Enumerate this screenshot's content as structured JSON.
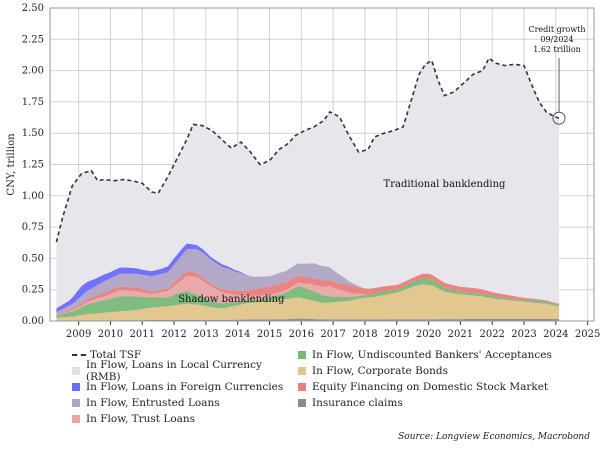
{
  "chart_data": {
    "type": "area",
    "ylabel": "CNY, trillion",
    "ylim": [
      0,
      2.5
    ],
    "y_ticks": [
      "0.00",
      "0.25",
      "0.50",
      "0.75",
      "1.00",
      "1.25",
      "1.50",
      "1.75",
      "2.00",
      "2.25",
      "2.50"
    ],
    "xlim": [
      2008.6,
      2025.7
    ],
    "x_ticks": [
      "2009",
      "2010",
      "2011",
      "2012",
      "2013",
      "2014",
      "2015",
      "2016",
      "2017",
      "2018",
      "2019",
      "2020",
      "2021",
      "2022",
      "2023",
      "2024",
      "2025"
    ],
    "grid": true,
    "legend_position": "bottom",
    "series": [
      {
        "name": "Total TSF",
        "kind": "line",
        "color": "#333333",
        "x": [
          2008.8,
          2009.0,
          2009.3,
          2009.6,
          2009.9,
          2010.1,
          2010.3,
          2010.6,
          2010.9,
          2011.2,
          2011.5,
          2011.8,
          2012.0,
          2012.3,
          2012.6,
          2012.9,
          2013.1,
          2013.4,
          2013.7,
          2014.0,
          2014.3,
          2014.6,
          2014.9,
          2015.2,
          2015.5,
          2015.8,
          2016.1,
          2016.3,
          2016.6,
          2016.9,
          2017.2,
          2017.4,
          2017.7,
          2018.0,
          2018.3,
          2018.6,
          2018.8,
          2019.1,
          2019.4,
          2019.7,
          2020.0,
          2020.2,
          2020.4,
          2020.6,
          2020.8,
          2021.0,
          2021.3,
          2021.6,
          2021.9,
          2022.2,
          2022.4,
          2022.6,
          2022.9,
          2023.2,
          2023.5,
          2023.8,
          2024.0,
          2024.2,
          2024.4,
          2024.6
        ],
        "y": [
          0.63,
          0.83,
          1.08,
          1.18,
          1.2,
          1.12,
          1.13,
          1.12,
          1.13,
          1.12,
          1.1,
          1.03,
          1.02,
          1.15,
          1.3,
          1.45,
          1.57,
          1.56,
          1.52,
          1.45,
          1.38,
          1.43,
          1.35,
          1.25,
          1.28,
          1.37,
          1.42,
          1.48,
          1.52,
          1.55,
          1.6,
          1.67,
          1.63,
          1.48,
          1.35,
          1.37,
          1.47,
          1.5,
          1.52,
          1.55,
          1.8,
          1.97,
          2.05,
          2.08,
          1.92,
          1.8,
          1.83,
          1.9,
          1.97,
          2.0,
          2.1,
          2.06,
          2.04,
          2.05,
          2.04,
          1.85,
          1.74,
          1.67,
          1.64,
          1.62
        ]
      },
      {
        "name": "In Flow, Loans in Local Currency (RMB)",
        "kind": "area",
        "color": "#e6e6ec",
        "x": [
          2008.8,
          2009.0,
          2009.3,
          2009.6,
          2009.9,
          2010.1,
          2010.3,
          2010.6,
          2010.9,
          2011.2,
          2011.5,
          2011.8,
          2012.0,
          2012.3,
          2012.6,
          2012.9,
          2013.1,
          2013.4,
          2013.7,
          2014.0,
          2014.3,
          2014.6,
          2014.9,
          2015.2,
          2015.5,
          2015.8,
          2016.1,
          2016.3,
          2016.6,
          2016.9,
          2017.2,
          2017.4,
          2017.7,
          2018.0,
          2018.3,
          2018.6,
          2018.8,
          2019.1,
          2019.4,
          2019.7,
          2020.0,
          2020.2,
          2020.4,
          2020.6,
          2020.8,
          2021.0,
          2021.3,
          2021.6,
          2021.9,
          2022.2,
          2022.4,
          2022.6,
          2022.9,
          2023.2,
          2023.5,
          2023.8,
          2024.0,
          2024.2,
          2024.4,
          2024.6
        ],
        "y": [
          0.63,
          0.83,
          1.08,
          1.18,
          1.2,
          1.12,
          1.13,
          1.12,
          1.13,
          1.12,
          1.1,
          1.03,
          1.02,
          1.15,
          1.3,
          1.45,
          1.57,
          1.56,
          1.52,
          1.45,
          1.38,
          1.43,
          1.35,
          1.25,
          1.28,
          1.37,
          1.42,
          1.48,
          1.52,
          1.55,
          1.6,
          1.67,
          1.63,
          1.48,
          1.35,
          1.37,
          1.47,
          1.5,
          1.52,
          1.55,
          1.8,
          1.97,
          2.05,
          2.08,
          1.92,
          1.8,
          1.83,
          1.9,
          1.97,
          2.0,
          2.1,
          2.06,
          2.04,
          2.05,
          2.04,
          1.85,
          1.74,
          1.67,
          1.64,
          1.62
        ]
      },
      {
        "name": "In Flow, Loans in Foreign Currencies",
        "kind": "area",
        "color": "#6b6bff",
        "x": [
          2008.8,
          2009.2,
          2009.6,
          2010.0,
          2010.5,
          2011.0,
          2011.5,
          2012.0,
          2012.5,
          2012.8,
          2013.0,
          2013.3,
          2013.6,
          2014.0,
          2014.5,
          2015.0
        ],
        "y": [
          0.03,
          0.04,
          0.08,
          0.06,
          0.05,
          0.05,
          0.04,
          0.04,
          0.05,
          0.05,
          0.04,
          0.03,
          0.02,
          0.02,
          0.01,
          0.0
        ]
      },
      {
        "name": "In Flow, Entrusted Loans",
        "kind": "area",
        "color": "#b0a4c4",
        "x": [
          2008.8,
          2009.3,
          2009.8,
          2010.3,
          2010.8,
          2011.3,
          2011.8,
          2012.3,
          2012.7,
          2013.0,
          2013.4,
          2013.8,
          2014.2,
          2014.6,
          2015.0,
          2015.5,
          2016.0,
          2016.5,
          2016.9,
          2017.3,
          2017.7,
          2018.0,
          2018.4
        ],
        "y": [
          0.02,
          0.04,
          0.07,
          0.09,
          0.1,
          0.11,
          0.12,
          0.13,
          0.16,
          0.18,
          0.2,
          0.19,
          0.17,
          0.14,
          0.1,
          0.08,
          0.09,
          0.1,
          0.12,
          0.11,
          0.07,
          0.03,
          0.0
        ]
      },
      {
        "name": "Equity Financing on Domestic Stock Market",
        "kind": "area",
        "color": "#e8807a",
        "x": [
          2008.8,
          2009.3,
          2009.8,
          2010.3,
          2010.8,
          2011.3,
          2011.8,
          2012.3,
          2012.6,
          2012.9,
          2013.3,
          2013.8,
          2014.3,
          2014.8,
          2015.2,
          2015.7,
          2016.2,
          2016.7,
          2017.2,
          2017.6,
          2018.0,
          2018.5,
          2019.0,
          2019.5,
          2020.0,
          2020.5,
          2021.0,
          2021.5,
          2022.0,
          2022.5,
          2023.0,
          2023.5,
          2024.0,
          2024.6
        ],
        "y": [
          0.005,
          0.01,
          0.02,
          0.03,
          0.03,
          0.03,
          0.02,
          0.02,
          0.03,
          0.04,
          0.03,
          0.02,
          0.03,
          0.04,
          0.06,
          0.07,
          0.06,
          0.05,
          0.05,
          0.05,
          0.06,
          0.05,
          0.04,
          0.04,
          0.03,
          0.04,
          0.04,
          0.04,
          0.04,
          0.03,
          0.03,
          0.02,
          0.01,
          0.01
        ]
      },
      {
        "name": "In Flow, Trust Loans",
        "kind": "area",
        "color": "#e8a6a6",
        "x": [
          2008.8,
          2009.3,
          2009.8,
          2010.3,
          2010.8,
          2011.3,
          2011.8,
          2012.3,
          2012.6,
          2012.9,
          2013.2,
          2013.6,
          2014.0,
          2014.4,
          2014.8,
          2015.2,
          2015.6,
          2016.0,
          2016.5,
          2017.0,
          2017.4,
          2017.8,
          2018.2,
          2018.6,
          2019.0
        ],
        "y": [
          0.0,
          0.01,
          0.02,
          0.03,
          0.05,
          0.04,
          0.03,
          0.05,
          0.08,
          0.12,
          0.14,
          0.12,
          0.09,
          0.06,
          0.04,
          0.03,
          0.02,
          0.02,
          0.03,
          0.06,
          0.08,
          0.05,
          0.02,
          0.0,
          0.0
        ]
      },
      {
        "name": "In Flow, Undiscounted Bankers' Acceptances",
        "kind": "area",
        "color": "#7ab87a",
        "x": [
          2008.8,
          2009.3,
          2009.8,
          2010.3,
          2010.8,
          2011.3,
          2011.8,
          2012.3,
          2012.6,
          2012.9,
          2013.2,
          2013.6,
          2014.0,
          2014.4,
          2014.8,
          2015.2,
          2015.6,
          2016.0,
          2016.4,
          2016.8,
          2017.2,
          2017.6,
          2018.0,
          2018.5,
          2019.0,
          2019.5,
          2020.0,
          2020.5,
          2021.0,
          2021.5,
          2022.0,
          2022.5,
          2023.0,
          2023.5,
          2024.0,
          2024.6
        ],
        "y": [
          0.02,
          0.04,
          0.08,
          0.1,
          0.12,
          0.11,
          0.08,
          0.07,
          0.09,
          0.1,
          0.08,
          0.05,
          0.04,
          0.03,
          0.02,
          0.02,
          0.03,
          0.05,
          0.09,
          0.08,
          0.06,
          0.04,
          0.03,
          0.02,
          0.03,
          0.02,
          0.04,
          0.05,
          0.03,
          0.02,
          0.02,
          0.02,
          0.01,
          0.01,
          0.02,
          0.01
        ]
      },
      {
        "name": "In Flow, Corporate Bonds",
        "kind": "area",
        "color": "#e2c58a",
        "x": [
          2008.8,
          2009.3,
          2009.8,
          2010.3,
          2010.8,
          2011.3,
          2011.8,
          2012.3,
          2012.6,
          2012.9,
          2013.3,
          2013.7,
          2014.0,
          2014.4,
          2014.8,
          2015.2,
          2015.6,
          2016.0,
          2016.4,
          2016.8,
          2017.2,
          2017.6,
          2018.0,
          2018.4,
          2018.8,
          2019.2,
          2019.6,
          2020.0,
          2020.3,
          2020.6,
          2021.0,
          2021.4,
          2021.8,
          2022.2,
          2022.6,
          2023.0,
          2023.4,
          2023.8,
          2024.2,
          2024.6
        ],
        "y": [
          0.02,
          0.03,
          0.05,
          0.06,
          0.07,
          0.08,
          0.1,
          0.11,
          0.12,
          0.13,
          0.12,
          0.1,
          0.09,
          0.11,
          0.13,
          0.14,
          0.15,
          0.16,
          0.17,
          0.15,
          0.13,
          0.14,
          0.15,
          0.17,
          0.18,
          0.2,
          0.22,
          0.26,
          0.28,
          0.27,
          0.22,
          0.2,
          0.19,
          0.18,
          0.16,
          0.15,
          0.14,
          0.13,
          0.12,
          0.1
        ]
      },
      {
        "name": "Insurance claims",
        "kind": "area",
        "color": "#8a8a96",
        "x": [
          2008.8,
          2010.0,
          2011.0,
          2012.0,
          2013.0,
          2014.0,
          2015.0,
          2016.0,
          2016.5,
          2017.0,
          2017.5,
          2018.0,
          2019.0,
          2020.0,
          2021.0,
          2022.0,
          2023.0,
          2024.0,
          2024.6
        ],
        "y": [
          0.005,
          0.006,
          0.007,
          0.008,
          0.009,
          0.01,
          0.012,
          0.014,
          0.02,
          0.015,
          0.012,
          0.012,
          0.013,
          0.014,
          0.015,
          0.016,
          0.017,
          0.017,
          0.017
        ]
      }
    ],
    "annotations": [
      {
        "text_lines": [
          "Credit growth",
          "09/2024",
          "1.62 trillion"
        ],
        "x": 2024.6,
        "y": 1.62
      }
    ],
    "area_labels": [
      {
        "text": "Traditional banklending",
        "x": 2021.0,
        "y": 1.07
      },
      {
        "text": "Shadow banklending",
        "x": 2014.3,
        "y": 0.15
      }
    ]
  },
  "legend": {
    "rows": [
      [
        "Total TSF",
        "In Flow, Undiscounted Bankers' Acceptances"
      ],
      [
        "In Flow, Loans in Local Currency (RMB)",
        "In Flow, Corporate Bonds"
      ],
      [
        "In Flow, Loans in Foreign Currencies",
        "Equity Financing on Domestic Stock Market"
      ],
      [
        "In Flow, Entrusted Loans",
        "Insurance claims"
      ],
      [
        "In Flow, Trust Loans",
        ""
      ]
    ]
  },
  "source": "Source: Longview Economics, Macrobond"
}
